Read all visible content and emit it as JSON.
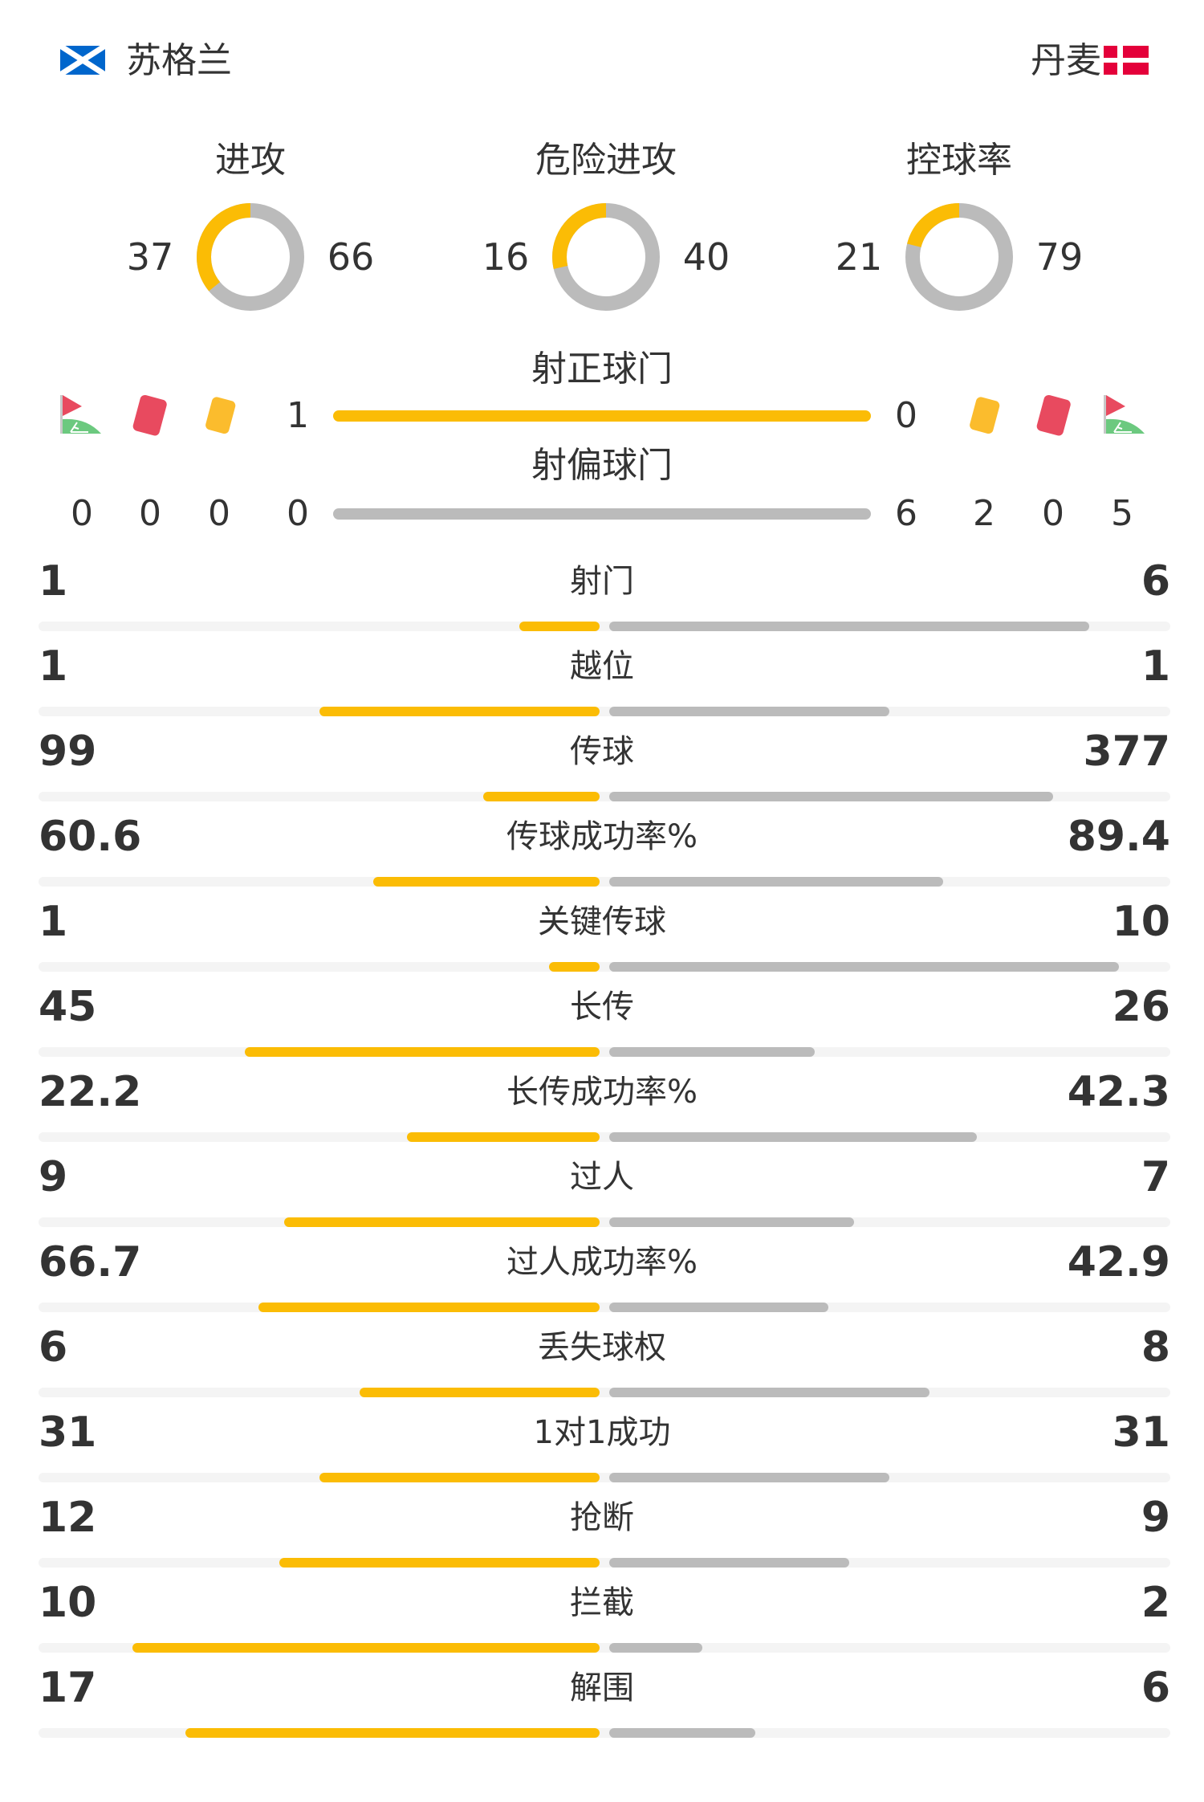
{
  "teams": {
    "home": "苏格兰",
    "away": "丹麦"
  },
  "colors": {
    "home": "#fbbc05",
    "away": "#bbbbbb",
    "track": "#f4f4f4",
    "scotland_flag": "#0066cc",
    "denmark_flag": "#e4003a",
    "red_card": "#e84a5f",
    "yellow_card": "#fbbc2d",
    "corner_green": "#6cc97f"
  },
  "donuts": [
    {
      "label": "进攻",
      "home": 37,
      "away": 66
    },
    {
      "label": "危险进攻",
      "home": 16,
      "away": 40
    },
    {
      "label": "控球率",
      "home": 21,
      "away": 79
    }
  ],
  "shots_on_target": {
    "label": "射正球门",
    "home": 1,
    "away": 0
  },
  "shots_off_target": {
    "label": "射偏球门",
    "home": 0,
    "away": 6
  },
  "discipline": {
    "icons": [
      "corner-flag-icon",
      "red-card-icon",
      "yellow-card-icon"
    ],
    "home": {
      "corners": 0,
      "red_cards": 0,
      "yellow_cards": 0
    },
    "away": {
      "yellow_cards": 2,
      "red_cards": 0,
      "corners": 5
    }
  },
  "stats": [
    {
      "label": "射门",
      "home": "1",
      "away": "6"
    },
    {
      "label": "越位",
      "home": "1",
      "away": "1"
    },
    {
      "label": "传球",
      "home": "99",
      "away": "377"
    },
    {
      "label": "传球成功率%",
      "home": "60.6",
      "away": "89.4"
    },
    {
      "label": "关键传球",
      "home": "1",
      "away": "10"
    },
    {
      "label": "长传",
      "home": "45",
      "away": "26"
    },
    {
      "label": "长传成功率%",
      "home": "22.2",
      "away": "42.3"
    },
    {
      "label": "过人",
      "home": "9",
      "away": "7"
    },
    {
      "label": "过人成功率%",
      "home": "66.7",
      "away": "42.9"
    },
    {
      "label": "丢失球权",
      "home": "6",
      "away": "8"
    },
    {
      "label": "1对1成功",
      "home": "31",
      "away": "31"
    },
    {
      "label": "抢断",
      "home": "12",
      "away": "9"
    },
    {
      "label": "拦截",
      "home": "10",
      "away": "2"
    },
    {
      "label": "解围",
      "home": "17",
      "away": "6"
    }
  ]
}
